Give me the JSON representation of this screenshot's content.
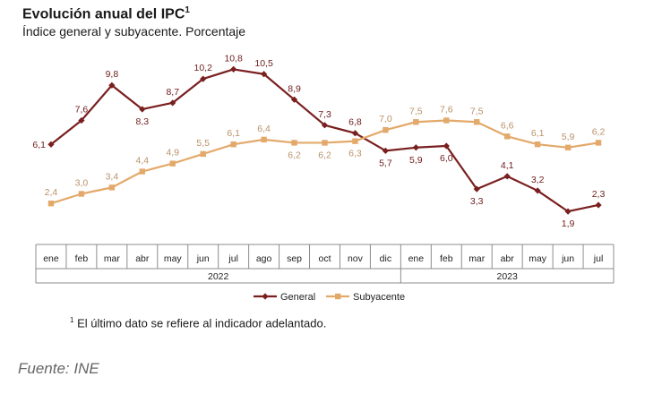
{
  "title": "Evolución anual del IPC",
  "title_sup": "1",
  "subtitle": "Índice general y subyacente. Porcentaje",
  "footnote_sup": "1",
  "footnote": "El último dato se refiere al indicador adelantado.",
  "source": "Fuente: INE",
  "colors": {
    "general": "#7a1f1f",
    "subyacente": "#e3a96a",
    "axis": "#8c8c8c",
    "label_general": "#6e1c1c",
    "label_sub": "#b8926a"
  },
  "chart_data": {
    "type": "line",
    "categories": [
      "ene",
      "feb",
      "mar",
      "abr",
      "may",
      "jun",
      "jul",
      "ago",
      "sep",
      "oct",
      "nov",
      "dic",
      "ene",
      "feb",
      "mar",
      "abr",
      "may",
      "jun",
      "jul"
    ],
    "year_groups": [
      {
        "label": "2022",
        "start": 0,
        "end": 11
      },
      {
        "label": "2023",
        "start": 12,
        "end": 18
      }
    ],
    "ylim": [
      0,
      12
    ],
    "series": [
      {
        "name": "General",
        "values": [
          6.1,
          7.6,
          9.8,
          8.3,
          8.7,
          10.2,
          10.8,
          10.5,
          8.9,
          7.3,
          6.8,
          5.7,
          5.9,
          6.0,
          3.3,
          4.1,
          3.2,
          1.9,
          2.3
        ],
        "labels": [
          "6,1",
          "7,6",
          "9,8",
          "8,3",
          "8,7",
          "10,2",
          "10,8",
          "10,5",
          "8,9",
          "7,3",
          "6,8",
          "5,7",
          "5,9",
          "6,0",
          "3,3",
          "4,1",
          "3,2",
          "1,9",
          "2,3"
        ]
      },
      {
        "name": "Subyacente",
        "values": [
          2.4,
          3.0,
          3.4,
          4.4,
          4.9,
          5.5,
          6.1,
          6.4,
          6.2,
          6.2,
          6.3,
          7.0,
          7.5,
          7.6,
          7.5,
          6.6,
          6.1,
          5.9,
          6.2
        ],
        "labels": [
          "2,4",
          "3,0",
          "3,4",
          "4,4",
          "4,9",
          "5,5",
          "6,1",
          "6,4",
          "6,2",
          "6,2",
          "6,3",
          "7,0",
          "7,5",
          "7,6",
          "7,5",
          "6,6",
          "6,1",
          "5,9",
          "6,2"
        ]
      }
    ]
  }
}
